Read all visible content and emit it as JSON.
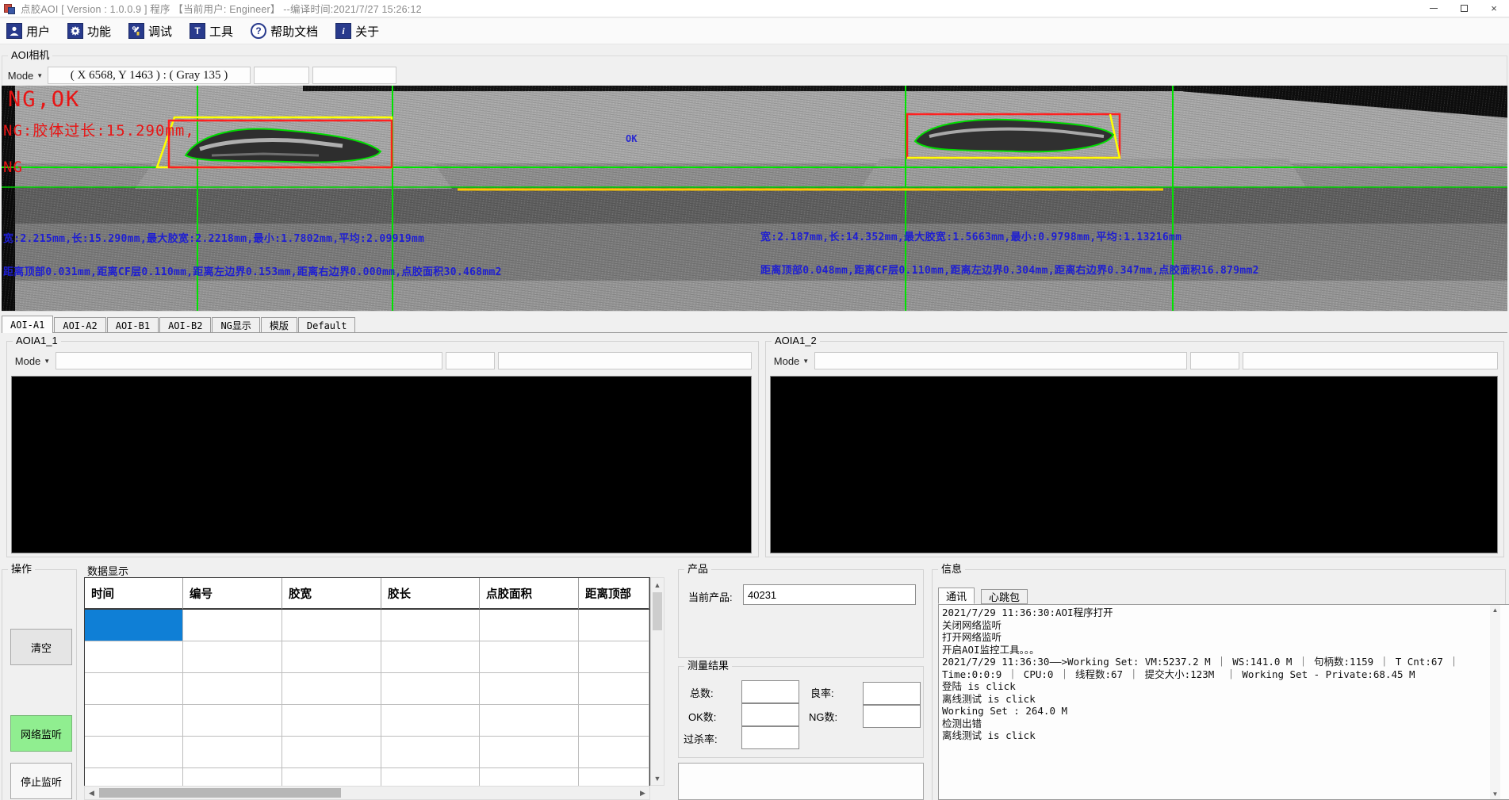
{
  "window": {
    "title": "点胶AOI [ Version : 1.0.0.9 ]  程序 【当前用户:  Engineer】 --编译时间:2021/7/27 15:26:12"
  },
  "glyphs": {
    "dropdown_arrow": "▼",
    "scroll_up": "▲",
    "scroll_down": "▼",
    "scroll_left": "◀",
    "scroll_right": "▶",
    "close": "×",
    "tools_letter": "T",
    "help_mark": "?",
    "about_mark": "i"
  },
  "colors": {
    "selected_cell": "#0f7fd6",
    "listen_button_green": "#90ee90",
    "ng_red": "#e81515",
    "measure_blue": "#1e1ed2",
    "crosshair_green": "#00e400",
    "box_red": "#ff2020",
    "box_yellow": "#ffff00"
  },
  "toolbar": {
    "items": [
      {
        "label": "用户",
        "icon": "user-icon"
      },
      {
        "label": "功能",
        "icon": "gear-icon"
      },
      {
        "label": "调试",
        "icon": "debug-icon"
      },
      {
        "label": "工具",
        "icon": "tools-icon"
      },
      {
        "label": "帮助文档",
        "icon": "help-icon"
      },
      {
        "label": "关于",
        "icon": "about-icon"
      }
    ]
  },
  "camera": {
    "group_label": "AOI相机",
    "mode_label": "Mode",
    "coords": "( X 6568, Y 1463 ) : ( Gray 135 )",
    "overlay": {
      "status": "NG,OK",
      "ng_reason": "NG:胶体过长:15.290mm,",
      "ng": "NG",
      "ok_label": "OK",
      "left_line1": "宽:2.215mm,长:15.290mm,最大胶宽:2.2218mm,最小:1.7802mm,平均:2.09919mm",
      "left_line2": "距离顶部0.031mm,距离CF层0.110mm,距离左边界0.153mm,距离右边界0.000mm,点胶面积30.468mm2",
      "right_line1": "宽:2.187mm,长:14.352mm,最大胶宽:1.5663mm,最小:0.9798mm,平均:1.13216mm",
      "right_line2": "距离顶部0.048mm,距离CF层0.110mm,距离左边界0.304mm,距离右边界0.347mm,点胶面积16.879mm2"
    }
  },
  "tabs": [
    {
      "label": "AOI-A1"
    },
    {
      "label": "AOI-A2"
    },
    {
      "label": "AOI-B1"
    },
    {
      "label": "AOI-B2"
    },
    {
      "label": "NG显示"
    },
    {
      "label": "模版"
    },
    {
      "label": "Default"
    }
  ],
  "panels": {
    "left": {
      "group_label": "AOIA1_1",
      "mode_label": "Mode"
    },
    "right": {
      "group_label": "AOIA1_2",
      "mode_label": "Mode"
    }
  },
  "operate": {
    "group_label": "操作",
    "clear_button": "清空",
    "listen_button": "网络监听",
    "stop_button": "停止监听"
  },
  "data_table": {
    "group_label": "数据显示",
    "columns": [
      "时间",
      "编号",
      "胶宽",
      "胶长",
      "点胶面积",
      "距离顶部"
    ],
    "visible_rows": 6,
    "selected": {
      "row": 0,
      "col": 0
    }
  },
  "product": {
    "group_label": "产品",
    "current_label": "当前产品:",
    "current_value": "40231"
  },
  "measure": {
    "group_label": "测量结果",
    "total_label": "总数:",
    "ok_label": "OK数:",
    "overkill_label": "过杀率:",
    "yield_label": "良率:",
    "ng_label": "NG数:",
    "total_value": "",
    "ok_value": "",
    "overkill_value": "",
    "yield_value": "",
    "ng_value": ""
  },
  "info": {
    "group_label": "信息",
    "tabs": [
      {
        "label": "通讯"
      },
      {
        "label": "心跳包"
      }
    ],
    "log": [
      "2021/7/29 11:36:30:AOI程序打开",
      "关闭网络监听",
      "打开网络监听",
      "开启AOI监控工具。。。",
      "2021/7/29 11:36:30——>Working Set: VM:5237.2 M ｜ WS:141.0 M ｜ 句柄数:1159 ｜ T Cnt:67 ｜",
      "Time:0:0:9 ｜ CPU:0 ｜ 线程数:67 ｜ 提交大小:123M  ｜ Working Set - Private:68.45 M",
      "登陆 is click",
      "离线测试 is click",
      "Working Set : 264.0 M",
      "检测出错",
      "离线测试 is click"
    ]
  }
}
